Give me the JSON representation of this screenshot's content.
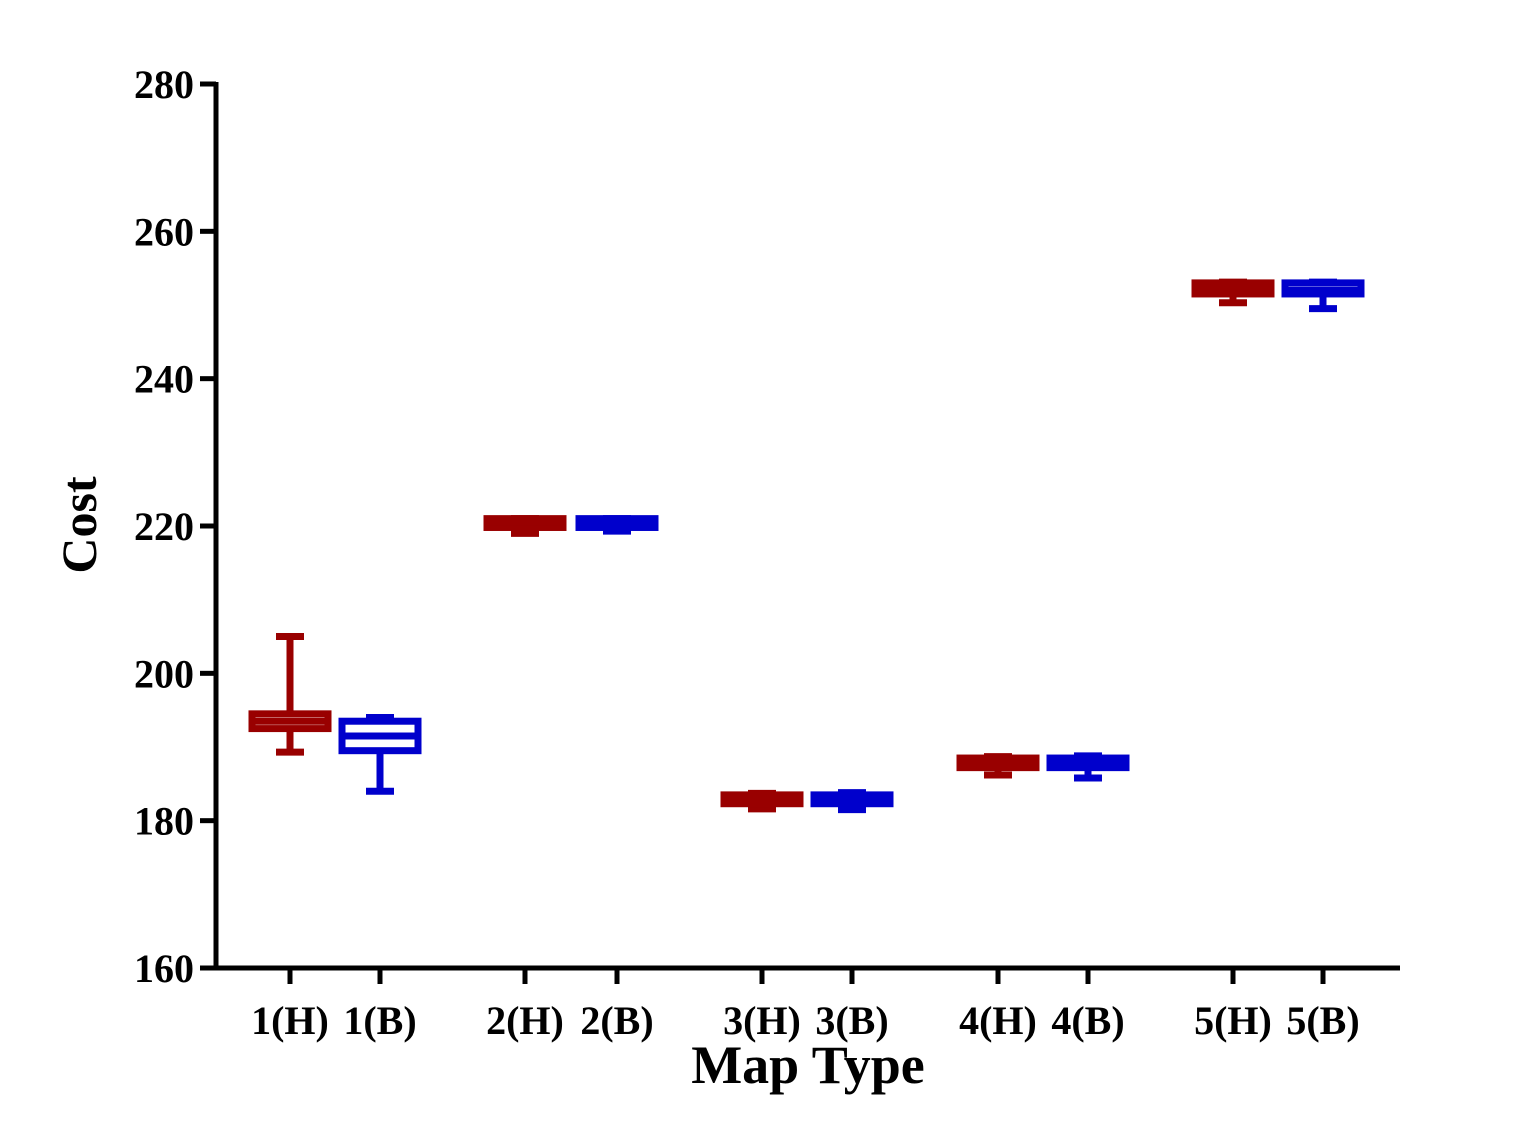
{
  "chart_data": {
    "type": "box",
    "xlabel": "Map Type",
    "ylabel": "Cost",
    "ylim": [
      160,
      280
    ],
    "yticks": [
      160,
      180,
      200,
      220,
      240,
      260,
      280
    ],
    "grid": false,
    "colors": {
      "H": "#990000",
      "B": "#0000cc"
    },
    "boxes": [
      {
        "label": "1(H)",
        "group": "H",
        "min": 189.3,
        "q1": 192.5,
        "median": 193.5,
        "q3": 194.5,
        "max": 205.0
      },
      {
        "label": "1(B)",
        "group": "B",
        "min": 184.0,
        "q1": 189.5,
        "median": 191.5,
        "q3": 193.5,
        "max": 194.0
      },
      {
        "label": "2(H)",
        "group": "H",
        "min": 219.0,
        "q1": 219.8,
        "median": 220.5,
        "q3": 221.0,
        "max": 221.0
      },
      {
        "label": "2(B)",
        "group": "B",
        "min": 219.3,
        "q1": 219.8,
        "median": 220.3,
        "q3": 221.0,
        "max": 221.0
      },
      {
        "label": "3(H)",
        "group": "H",
        "min": 181.6,
        "q1": 182.3,
        "median": 182.8,
        "q3": 183.5,
        "max": 183.7
      },
      {
        "label": "3(B)",
        "group": "B",
        "min": 181.5,
        "q1": 182.3,
        "median": 182.9,
        "q3": 183.5,
        "max": 183.8
      },
      {
        "label": "4(H)",
        "group": "H",
        "min": 186.2,
        "q1": 187.2,
        "median": 187.9,
        "q3": 188.5,
        "max": 188.7
      },
      {
        "label": "4(B)",
        "group": "B",
        "min": 185.8,
        "q1": 187.2,
        "median": 187.6,
        "q3": 188.5,
        "max": 188.8
      },
      {
        "label": "5(H)",
        "group": "H",
        "min": 250.3,
        "q1": 251.5,
        "median": 252.1,
        "q3": 253.0,
        "max": 253.1
      },
      {
        "label": "5(B)",
        "group": "B",
        "min": 249.5,
        "q1": 251.5,
        "median": 252.0,
        "q3": 253.0,
        "max": 253.1
      }
    ]
  }
}
